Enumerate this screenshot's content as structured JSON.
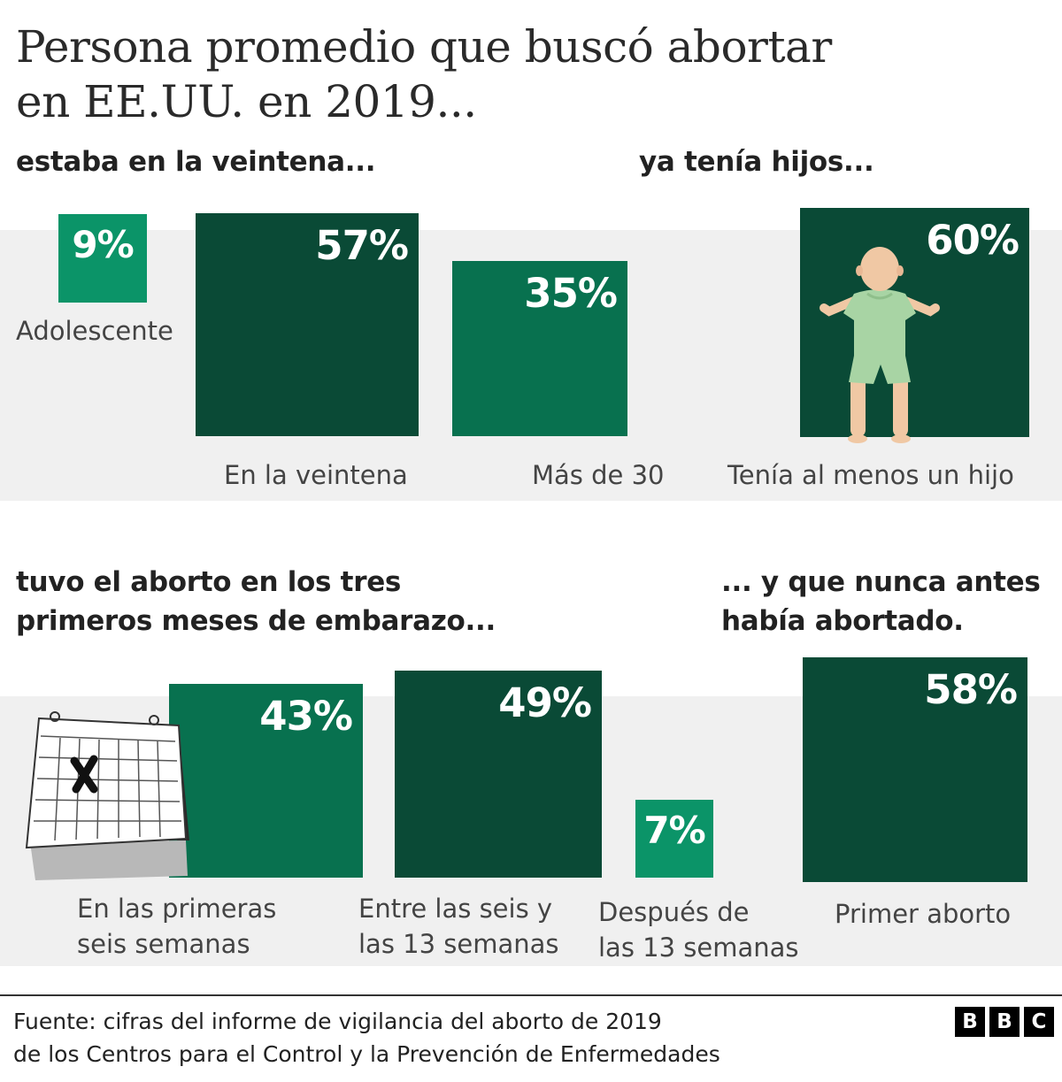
{
  "title": {
    "line1": "Persona promedio que buscó abortar",
    "line2": "en EE.UU. en 2019..."
  },
  "colors": {
    "dark_green": "#0a4a36",
    "medium_green": "#08714f",
    "light_green": "#0b9468",
    "band": "#f0f0f0"
  },
  "sections": {
    "age": {
      "heading": "estaba en la veintena..."
    },
    "children": {
      "heading": "ya tenía hijos..."
    },
    "trimester": {
      "heading_line1": "tuvo el aborto en los tres",
      "heading_line2": "primeros meses de embarazo..."
    },
    "first": {
      "heading_line1": "... y que nunca antes",
      "heading_line2": "había abortado."
    }
  },
  "chart_data": [
    {
      "type": "bar",
      "unit": "%",
      "categories": [
        "Adolescente",
        "En la veintena",
        "Más de 30"
      ],
      "values": [
        9,
        57,
        35
      ],
      "value_labels": [
        "9%",
        "57%",
        "35%"
      ],
      "colors": [
        "#0b9468",
        "#0a4a36",
        "#08714f"
      ]
    },
    {
      "type": "bar",
      "unit": "%",
      "categories": [
        "Tenía al menos un hijo"
      ],
      "values": [
        60
      ],
      "value_labels": [
        "60%"
      ],
      "colors": [
        "#0a4a36"
      ],
      "icon": "baby-icon"
    },
    {
      "type": "bar",
      "unit": "%",
      "categories": [
        "En las primeras seis semanas",
        "Entre las seis y las 13 semanas",
        "Después de las 13 semanas"
      ],
      "category_lines": [
        [
          "En las primeras",
          "seis semanas"
        ],
        [
          "Entre las seis y",
          "las 13 semanas"
        ],
        [
          "Después de",
          "las 13 semanas"
        ]
      ],
      "values": [
        43,
        49,
        7
      ],
      "value_labels": [
        "43%",
        "49%",
        "7%"
      ],
      "colors": [
        "#08714f",
        "#0a4a36",
        "#0b9468"
      ],
      "icon": "calendar-icon"
    },
    {
      "type": "bar",
      "unit": "%",
      "categories": [
        "Primer aborto"
      ],
      "values": [
        58
      ],
      "value_labels": [
        "58%"
      ],
      "colors": [
        "#0a4a36"
      ]
    }
  ],
  "footer": {
    "source_line1": "Fuente: cifras del informe de vigilancia del aborto de 2019",
    "source_line2": "de los Centros para el Control y la Prevención de Enfermedades",
    "logo_letters": [
      "B",
      "B",
      "C"
    ]
  }
}
